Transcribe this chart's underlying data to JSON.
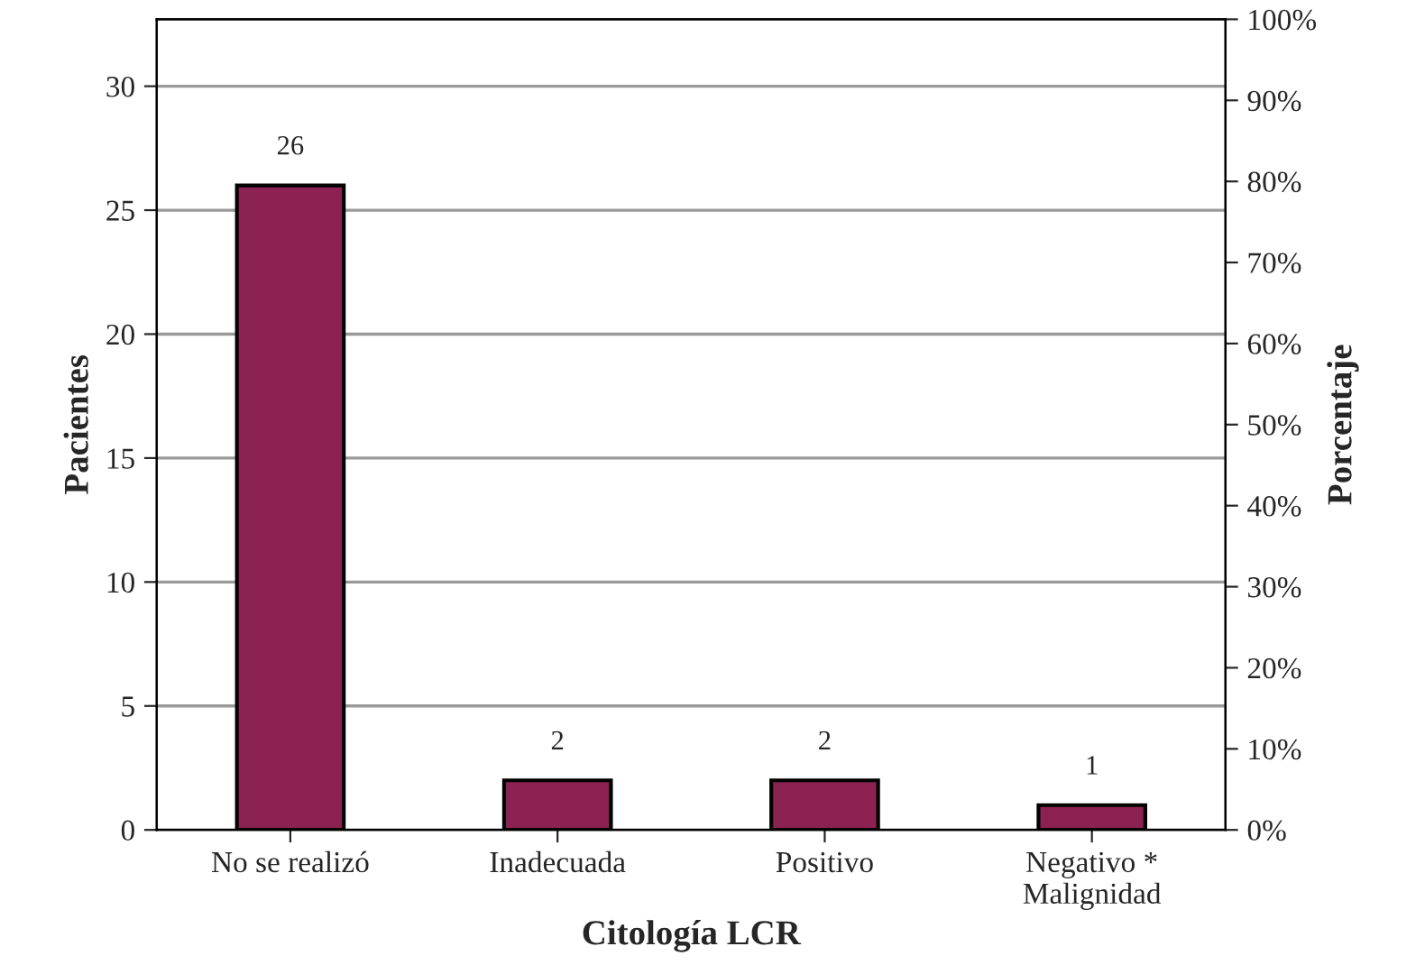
{
  "chart_data": {
    "type": "bar",
    "categories": [
      "No se realizó",
      "Inadecuada",
      "Positivo",
      "Negativo *\nMalignidad"
    ],
    "values": [
      26,
      2,
      2,
      1
    ],
    "color": "#8b2252",
    "data_labels": true,
    "xlabel": "Citología LCR",
    "ylabel": "Pacientes",
    "y2label": "Porcentaje",
    "ylim": [
      0,
      32.7
    ],
    "yticks": [
      0,
      5,
      10,
      15,
      20,
      25,
      30
    ],
    "y2lim": [
      0,
      100
    ],
    "y2ticks": [
      {
        "value": 0,
        "label": "0%"
      },
      {
        "value": 10,
        "label": "10%"
      },
      {
        "value": 20,
        "label": "20%"
      },
      {
        "value": 30,
        "label": "30%"
      },
      {
        "value": 40,
        "label": "40%"
      },
      {
        "value": 50,
        "label": "50%"
      },
      {
        "value": 60,
        "label": "60%"
      },
      {
        "value": 70,
        "label": "70%"
      },
      {
        "value": 80,
        "label": "80%"
      },
      {
        "value": 90,
        "label": "90%"
      },
      {
        "value": 100,
        "label": "100%"
      }
    ],
    "grid": "y",
    "legend": false
  }
}
